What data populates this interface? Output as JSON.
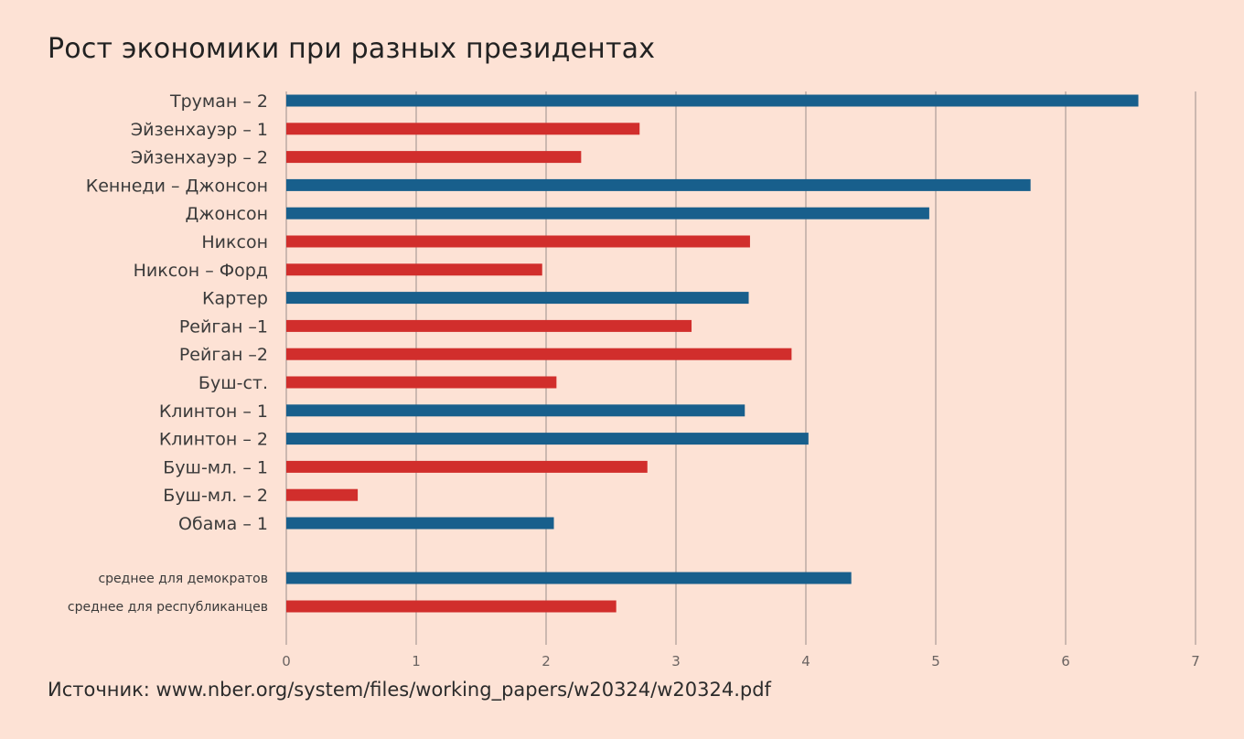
{
  "title": "Рост экономики при разных президентах",
  "source": "Источник: www.nber.org/system/files/working_papers/w20324/w20324.pdf",
  "colors": {
    "democrat": "#185f8c",
    "republican": "#d12e2c",
    "grid": "#9a8f8a",
    "background": "#fde2d5"
  },
  "chart_data": {
    "type": "bar",
    "orientation": "horizontal",
    "grid": true,
    "xlim": [
      0,
      7
    ],
    "xticks": [
      "0",
      "1",
      "2",
      "3",
      "4",
      "5",
      "6",
      "7"
    ],
    "categories": [
      "Труман – 2",
      "Эйзенхауэр – 1",
      "Эйзенхауэр – 2",
      "Кеннеди – Джонсон",
      "Джонсон",
      "Никсон",
      "Никсон – Форд",
      "Картер",
      "Рейган –1",
      "Рейган –2",
      "Буш-ст.",
      "Клинтон – 1",
      "Клинтон – 2",
      "Буш-мл. – 1",
      "Буш-мл. – 2",
      "Обама – 1"
    ],
    "values": [
      6.56,
      2.72,
      2.27,
      5.73,
      4.95,
      3.57,
      1.97,
      3.56,
      3.12,
      3.89,
      2.08,
      3.53,
      4.02,
      2.78,
      0.55,
      2.06
    ],
    "party": [
      "D",
      "R",
      "R",
      "D",
      "D",
      "R",
      "R",
      "D",
      "R",
      "R",
      "R",
      "D",
      "D",
      "R",
      "R",
      "D"
    ],
    "averages": [
      {
        "label": "среднее для демократов",
        "value": 4.35,
        "party": "D"
      },
      {
        "label": "среднее для республиканцев",
        "value": 2.54,
        "party": "R"
      }
    ]
  }
}
